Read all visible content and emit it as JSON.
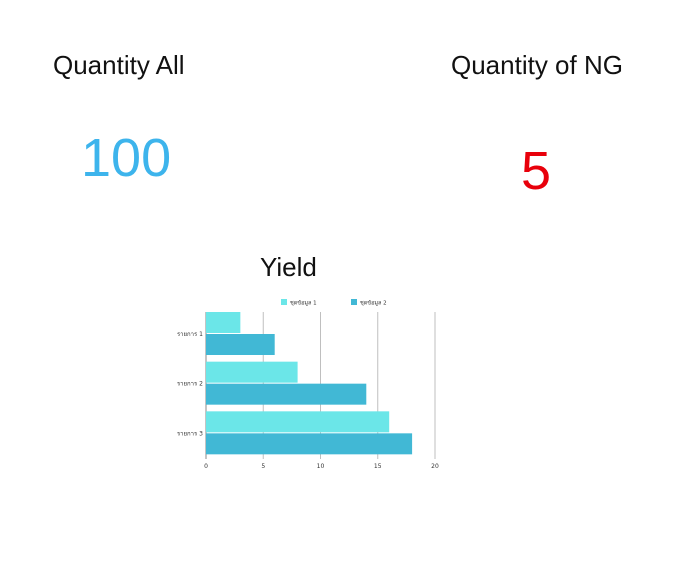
{
  "stats": {
    "quantity_all": {
      "label": "Quantity All",
      "value": "100",
      "color": "#3db4ec"
    },
    "quantity_ng": {
      "label": "Quantity of NG",
      "value": "5",
      "color": "#e8000b"
    }
  },
  "colors": {
    "series1": "#6be6e8",
    "series2": "#41b8d5",
    "grid": "#bfbfbf",
    "text": "#333333"
  },
  "chart_data": {
    "type": "bar",
    "orientation": "horizontal",
    "title": "Yield",
    "categories": [
      "รายการ 1",
      "รายการ 2",
      "รายการ 3"
    ],
    "series": [
      {
        "name": "ชุดข้อมูล 1",
        "values": [
          3,
          8,
          16
        ]
      },
      {
        "name": "ชุดข้อมูล 2",
        "values": [
          6,
          14,
          18
        ]
      }
    ],
    "xlim": [
      0,
      20
    ],
    "xticks": [
      0,
      5,
      10,
      15,
      20
    ],
    "grid": true,
    "legend": "top",
    "xlabel": "",
    "ylabel": ""
  }
}
